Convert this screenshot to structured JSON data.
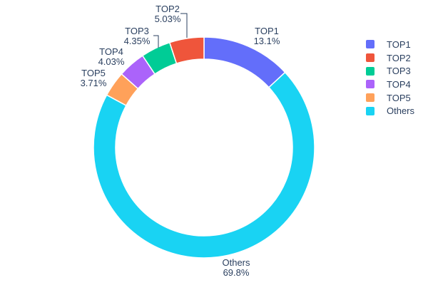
{
  "chart_data": {
    "type": "pie",
    "subtype": "donut",
    "hole": 0.8,
    "background": "#ffffff",
    "text_color": "#2a3f5f",
    "legend_position": "right",
    "slices": [
      {
        "label": "TOP1",
        "value": 13.1,
        "percent_label": "13.1%",
        "color": "#636EFA"
      },
      {
        "label": "TOP2",
        "value": 5.03,
        "percent_label": "5.03%",
        "color": "#EF553B"
      },
      {
        "label": "TOP3",
        "value": 4.35,
        "percent_label": "4.35%",
        "color": "#00CC96"
      },
      {
        "label": "TOP4",
        "value": 4.03,
        "percent_label": "4.03%",
        "color": "#AB63FA"
      },
      {
        "label": "TOP5",
        "value": 3.71,
        "percent_label": "3.71%",
        "color": "#FFA15A"
      },
      {
        "label": "Others",
        "value": 69.8,
        "percent_label": "69.8%",
        "color": "#19D3F3"
      }
    ]
  }
}
